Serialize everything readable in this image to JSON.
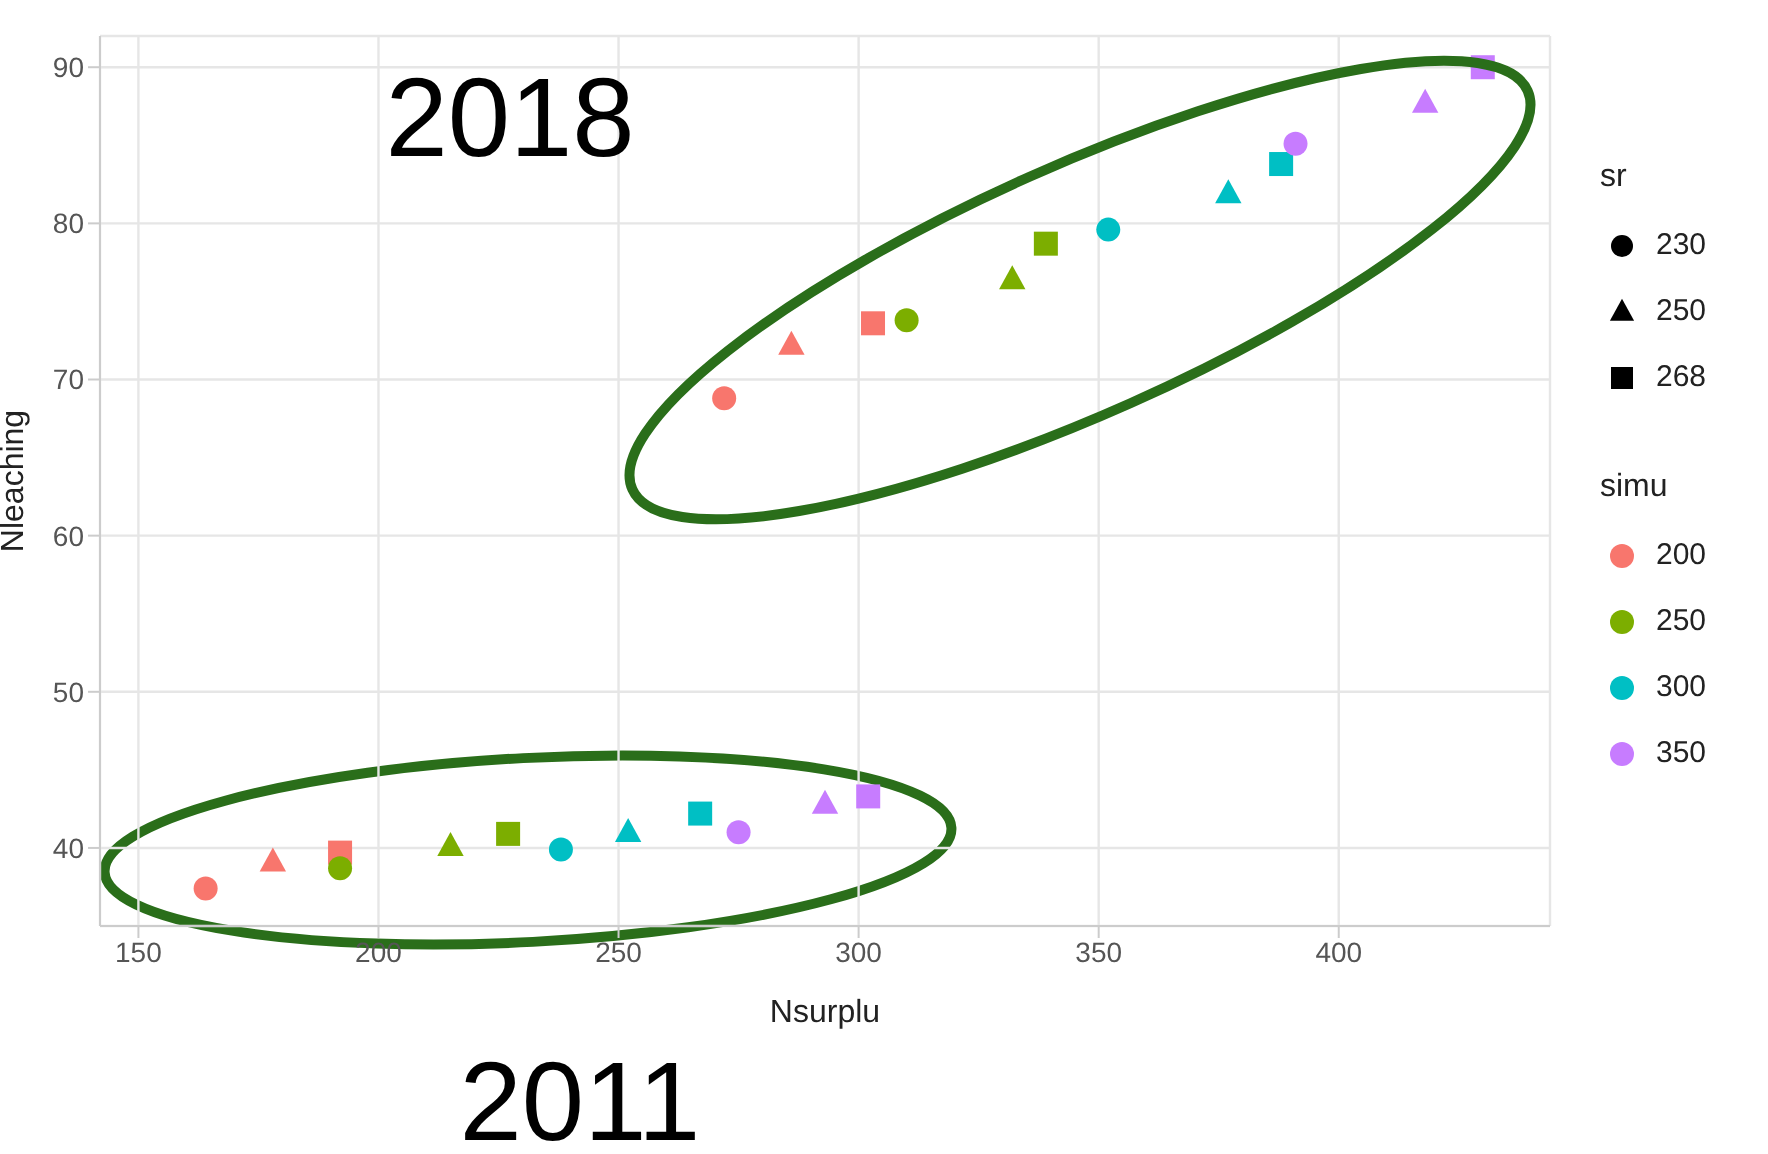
{
  "chart_data": {
    "type": "scatter",
    "xlabel": "Nsurplu",
    "ylabel": "Nleaching",
    "legend_title": "simu",
    "legend": "right",
    "grid": true,
    "xlim": [
      142,
      444
    ],
    "ylim": [
      35,
      92
    ],
    "xticks": [
      150,
      200,
      250,
      300,
      350,
      400
    ],
    "yticks": [
      40,
      50,
      60,
      70,
      80,
      90
    ],
    "annotations": [
      "2018",
      "2011",
      "sr",
      "230",
      "250",
      "268"
    ],
    "series": [
      {
        "name": "200",
        "color": "#f8766d",
        "marker": "circle",
        "x": [
          164,
          272
        ],
        "values": [
          37.4,
          68.8
        ]
      },
      {
        "color": "#f8766d",
        "marker": "triangle",
        "x": [
          178,
          286
        ],
        "values": [
          39.1,
          72.2
        ]
      },
      {
        "color": "#f8766d",
        "marker": "square",
        "x": [
          192,
          303
        ],
        "values": [
          39.7,
          73.6
        ]
      },
      {
        "name": "250",
        "color": "#7cae00",
        "marker": "circle",
        "x": [
          192,
          310
        ],
        "values": [
          38.7,
          73.8
        ]
      },
      {
        "color": "#7cae00",
        "marker": "triangle",
        "x": [
          215,
          332
        ],
        "values": [
          40.1,
          76.4
        ]
      },
      {
        "color": "#7cae00",
        "marker": "square",
        "x": [
          227,
          339
        ],
        "values": [
          40.9,
          78.7
        ]
      },
      {
        "name": "300",
        "color": "#00bfc4",
        "marker": "circle",
        "x": [
          238,
          352
        ],
        "values": [
          39.9,
          79.6
        ]
      },
      {
        "color": "#00bfc4",
        "marker": "triangle",
        "x": [
          252,
          377
        ],
        "values": [
          41.0,
          81.9
        ]
      },
      {
        "color": "#00bfc4",
        "marker": "square",
        "x": [
          267,
          388
        ],
        "values": [
          42.2,
          83.8
        ]
      },
      {
        "name": "350",
        "color": "#c77cff",
        "marker": "circle",
        "x": [
          275,
          391
        ],
        "values": [
          41.0,
          85.1
        ]
      },
      {
        "color": "#c77cff",
        "marker": "triangle",
        "x": [
          293,
          418
        ],
        "values": [
          42.8,
          87.7
        ]
      },
      {
        "color": "#c77cff",
        "marker": "square",
        "x": [
          302,
          430
        ],
        "values": [
          43.3,
          90.0
        ]
      }
    ]
  }
}
